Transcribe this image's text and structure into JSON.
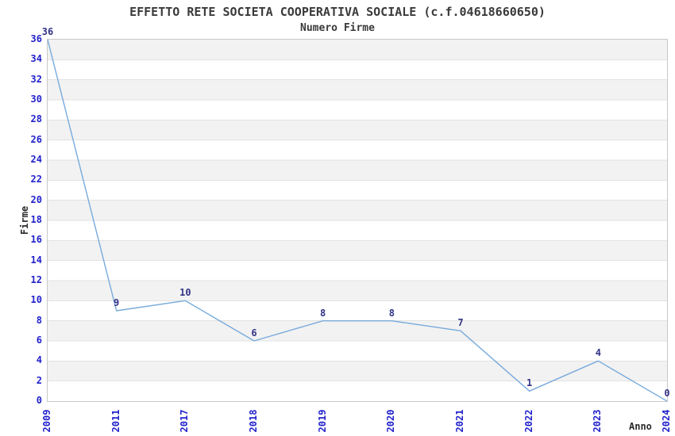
{
  "chart_data": {
    "type": "line",
    "title": "EFFETTO RETE SOCIETA COOPERATIVA SOCIALE (c.f.04618660650)",
    "subtitle": "Numero Firme",
    "xlabel": "Anno",
    "ylabel": "Firme",
    "categories": [
      "2009",
      "2011",
      "2017",
      "2018",
      "2019",
      "2020",
      "2021",
      "2022",
      "2023",
      "2024"
    ],
    "series": [
      {
        "name": "Numero Firme",
        "values": [
          36,
          9,
          10,
          6,
          8,
          8,
          7,
          1,
          4,
          0
        ]
      }
    ],
    "ylim": [
      0,
      36
    ],
    "yticks": [
      0,
      2,
      4,
      6,
      8,
      10,
      12,
      14,
      16,
      18,
      20,
      22,
      24,
      26,
      28,
      30,
      32,
      34,
      36
    ],
    "legend_position": "none",
    "grid": "horizontal alternating bands every 2 units",
    "value_labels_shown": true,
    "colors": {
      "line": "#78aadc",
      "tick_labels": "#2222cc",
      "value_labels": "#333388",
      "band": "#f2f2f2",
      "grid_line": "#e2e2e2",
      "frame": "#c8c8c8",
      "title_text": "#3a3a3a"
    }
  }
}
